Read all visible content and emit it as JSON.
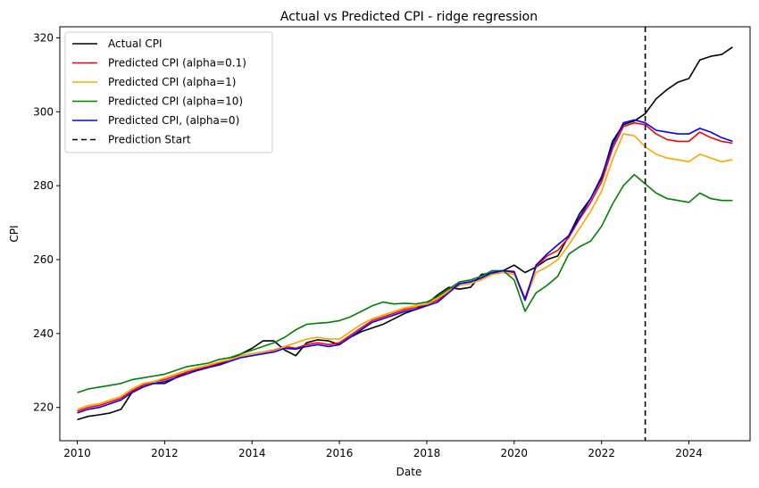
{
  "chart_data": {
    "type": "line",
    "title": "Actual vs Predicted CPI - ridge regression",
    "xlabel": "Date",
    "ylabel": "CPI",
    "xlim": [
      2009.6,
      2025.4
    ],
    "ylim": [
      211,
      323
    ],
    "xticks": [
      2010,
      2012,
      2014,
      2016,
      2018,
      2020,
      2022,
      2024
    ],
    "yticks": [
      220,
      240,
      260,
      280,
      300,
      320
    ],
    "grid": false,
    "legend_position": "top-left",
    "prediction_start": 2023.0,
    "series": [
      {
        "name": "Actual CPI",
        "color": "#000000",
        "dash": "",
        "x": [
          2010,
          2010.25,
          2010.5,
          2010.75,
          2011,
          2011.25,
          2011.5,
          2011.75,
          2012,
          2012.25,
          2012.5,
          2012.75,
          2013,
          2013.25,
          2013.5,
          2013.75,
          2014,
          2014.25,
          2014.5,
          2014.75,
          2015,
          2015.25,
          2015.5,
          2015.75,
          2016,
          2016.25,
          2016.5,
          2016.75,
          2017,
          2017.25,
          2017.5,
          2017.75,
          2018,
          2018.25,
          2018.5,
          2018.75,
          2019,
          2019.25,
          2019.5,
          2019.75,
          2020,
          2020.25,
          2020.5,
          2020.75,
          2021,
          2021.25,
          2021.5,
          2021.75,
          2022,
          2022.25,
          2022.5,
          2022.75,
          2023,
          2023.25,
          2023.5,
          2023.75,
          2024,
          2024.25,
          2024.5,
          2024.75,
          2025
        ],
        "y": [
          216.7,
          217.6,
          218.0,
          218.5,
          219.5,
          224.0,
          225.5,
          226.5,
          226.5,
          228.0,
          229.5,
          230.3,
          231.0,
          231.8,
          233.0,
          234.5,
          236.0,
          238.0,
          238.0,
          235.5,
          234.0,
          237.5,
          238.3,
          238.0,
          237.0,
          239.0,
          240.5,
          241.5,
          242.5,
          244.0,
          245.5,
          246.5,
          248.0,
          250.5,
          252.5,
          252.0,
          252.5,
          256.0,
          256.3,
          257.0,
          258.5,
          256.5,
          258.0,
          260.0,
          261.0,
          266.5,
          272.5,
          276.5,
          282.0,
          292.0,
          296.5,
          297.5,
          299.5,
          303.5,
          306.0,
          308.0,
          309.0,
          314.0,
          315.0,
          315.5,
          317.5
        ]
      },
      {
        "name": "Predicted CPI (alpha=0.1)",
        "color": "#ff0000",
        "dash": "",
        "x": [
          2010,
          2010.25,
          2010.5,
          2010.75,
          2011,
          2011.25,
          2011.5,
          2011.75,
          2012,
          2012.25,
          2012.5,
          2012.75,
          2013,
          2013.25,
          2013.5,
          2013.75,
          2014,
          2014.25,
          2014.5,
          2014.75,
          2015,
          2015.25,
          2015.5,
          2015.75,
          2016,
          2016.25,
          2016.5,
          2016.75,
          2017,
          2017.25,
          2017.5,
          2017.75,
          2018,
          2018.25,
          2018.5,
          2018.75,
          2019,
          2019.25,
          2019.5,
          2019.75,
          2020,
          2020.25,
          2020.5,
          2020.75,
          2021,
          2021.25,
          2021.5,
          2021.75,
          2022,
          2022.25,
          2022.5,
          2022.75,
          2023,
          2023.25,
          2023.5,
          2023.75,
          2024,
          2024.25,
          2024.5,
          2024.75,
          2025
        ],
        "y": [
          219.0,
          220.0,
          220.5,
          221.5,
          222.5,
          224.5,
          226.0,
          227.0,
          227.5,
          228.5,
          229.5,
          230.3,
          231.0,
          232.0,
          233.0,
          234.0,
          234.5,
          235.0,
          235.5,
          236.5,
          236.0,
          237.0,
          237.5,
          237.0,
          237.5,
          239.5,
          241.5,
          243.5,
          244.5,
          245.5,
          246.5,
          247.0,
          248.0,
          249.0,
          251.5,
          253.5,
          254.0,
          255.0,
          256.5,
          257.0,
          256.5,
          249.5,
          258.0,
          261.0,
          262.5,
          266.0,
          271.0,
          275.5,
          281.0,
          290.0,
          296.0,
          297.0,
          296.5,
          294.0,
          292.5,
          292.0,
          292.0,
          294.5,
          293.0,
          292.0,
          291.5
        ]
      },
      {
        "name": "Predicted CPI (alpha=1)",
        "color": "#ffa500",
        "dash": "",
        "x": [
          2010,
          2010.25,
          2010.5,
          2010.75,
          2011,
          2011.25,
          2011.5,
          2011.75,
          2012,
          2012.25,
          2012.5,
          2012.75,
          2013,
          2013.25,
          2013.5,
          2013.75,
          2014,
          2014.25,
          2014.5,
          2014.75,
          2015,
          2015.25,
          2015.5,
          2015.75,
          2016,
          2016.25,
          2016.5,
          2016.75,
          2017,
          2017.25,
          2017.5,
          2017.75,
          2018,
          2018.25,
          2018.5,
          2018.75,
          2019,
          2019.25,
          2019.5,
          2019.75,
          2020,
          2020.25,
          2020.5,
          2020.75,
          2021,
          2021.25,
          2021.5,
          2021.75,
          2022,
          2022.25,
          2022.5,
          2022.75,
          2023,
          2023.25,
          2023.5,
          2023.75,
          2024,
          2024.25,
          2024.5,
          2024.75,
          2025
        ],
        "y": [
          219.5,
          220.5,
          221.0,
          222.0,
          223.0,
          225.0,
          226.5,
          227.0,
          228.0,
          229.0,
          230.0,
          230.8,
          231.5,
          232.3,
          233.0,
          234.0,
          234.5,
          235.0,
          235.3,
          236.5,
          237.5,
          238.5,
          239.0,
          238.5,
          238.5,
          240.5,
          242.5,
          244.0,
          245.0,
          246.0,
          247.0,
          247.5,
          248.0,
          249.5,
          251.5,
          253.0,
          253.5,
          254.5,
          256.0,
          256.5,
          256.0,
          249.0,
          256.5,
          258.0,
          260.0,
          264.0,
          268.5,
          273.0,
          278.5,
          287.0,
          294.0,
          293.5,
          290.5,
          288.5,
          287.5,
          287.0,
          286.5,
          288.5,
          287.5,
          286.5,
          287.0
        ]
      },
      {
        "name": "Predicted CPI (alpha=10)",
        "color": "#008000",
        "dash": "",
        "x": [
          2010,
          2010.25,
          2010.5,
          2010.75,
          2011,
          2011.25,
          2011.5,
          2011.75,
          2012,
          2012.25,
          2012.5,
          2012.75,
          2013,
          2013.25,
          2013.5,
          2013.75,
          2014,
          2014.25,
          2014.5,
          2014.75,
          2015,
          2015.25,
          2015.5,
          2015.75,
          2016,
          2016.25,
          2016.5,
          2016.75,
          2017,
          2017.25,
          2017.5,
          2017.75,
          2018,
          2018.25,
          2018.5,
          2018.75,
          2019,
          2019.25,
          2019.5,
          2019.75,
          2020,
          2020.25,
          2020.5,
          2020.75,
          2021,
          2021.25,
          2021.5,
          2021.75,
          2022,
          2022.25,
          2022.5,
          2022.75,
          2023,
          2023.25,
          2023.5,
          2023.75,
          2024,
          2024.25,
          2024.5,
          2024.75,
          2025
        ],
        "y": [
          224.0,
          225.0,
          225.5,
          226.0,
          226.5,
          227.5,
          228.0,
          228.5,
          229.0,
          230.0,
          231.0,
          231.5,
          232.0,
          233.0,
          233.5,
          234.5,
          235.5,
          236.5,
          237.5,
          239.0,
          241.0,
          242.5,
          242.8,
          243.0,
          243.5,
          244.5,
          246.0,
          247.5,
          248.5,
          248.0,
          248.2,
          248.0,
          248.5,
          250.0,
          252.0,
          254.0,
          254.5,
          255.5,
          257.0,
          257.0,
          254.5,
          246.0,
          251.0,
          253.0,
          255.5,
          261.5,
          263.5,
          265.0,
          269.0,
          275.0,
          280.0,
          283.0,
          280.5,
          278.0,
          276.5,
          276.0,
          275.5,
          278.0,
          276.5,
          276.0,
          276.0
        ]
      },
      {
        "name": "Predicted CPI, (alpha=0)",
        "color": "#0000ff",
        "dash": "",
        "x": [
          2010,
          2010.25,
          2010.5,
          2010.75,
          2011,
          2011.25,
          2011.5,
          2011.75,
          2012,
          2012.25,
          2012.5,
          2012.75,
          2013,
          2013.25,
          2013.5,
          2013.75,
          2014,
          2014.25,
          2014.5,
          2014.75,
          2015,
          2015.25,
          2015.5,
          2015.75,
          2016,
          2016.25,
          2016.5,
          2016.75,
          2017,
          2017.25,
          2017.5,
          2017.75,
          2018,
          2018.25,
          2018.5,
          2018.75,
          2019,
          2019.25,
          2019.5,
          2019.75,
          2020,
          2020.25,
          2020.5,
          2020.75,
          2021,
          2021.25,
          2021.5,
          2021.75,
          2022,
          2022.25,
          2022.5,
          2022.75,
          2023,
          2023.25,
          2023.5,
          2023.75,
          2024,
          2024.25,
          2024.5,
          2024.75,
          2025
        ],
        "y": [
          218.5,
          219.5,
          220.0,
          221.0,
          222.0,
          224.0,
          225.5,
          226.5,
          227.0,
          228.0,
          229.0,
          230.0,
          230.8,
          231.5,
          232.5,
          233.5,
          234.0,
          234.5,
          235.0,
          236.0,
          235.8,
          236.5,
          237.0,
          236.5,
          237.0,
          239.0,
          241.0,
          243.0,
          244.0,
          245.0,
          246.0,
          246.5,
          247.5,
          248.5,
          251.0,
          253.5,
          254.0,
          255.0,
          256.5,
          257.0,
          256.8,
          249.0,
          258.5,
          261.5,
          264.0,
          266.5,
          271.5,
          276.5,
          282.5,
          291.0,
          297.0,
          297.8,
          297.0,
          295.0,
          294.5,
          294.0,
          294.0,
          295.5,
          294.5,
          293.0,
          292.0
        ]
      },
      {
        "name": "Prediction Start",
        "color": "#000000",
        "dash": "6,4",
        "vertical": true,
        "x": [
          2023.0,
          2023.0
        ],
        "y": [
          211,
          323
        ]
      }
    ]
  }
}
